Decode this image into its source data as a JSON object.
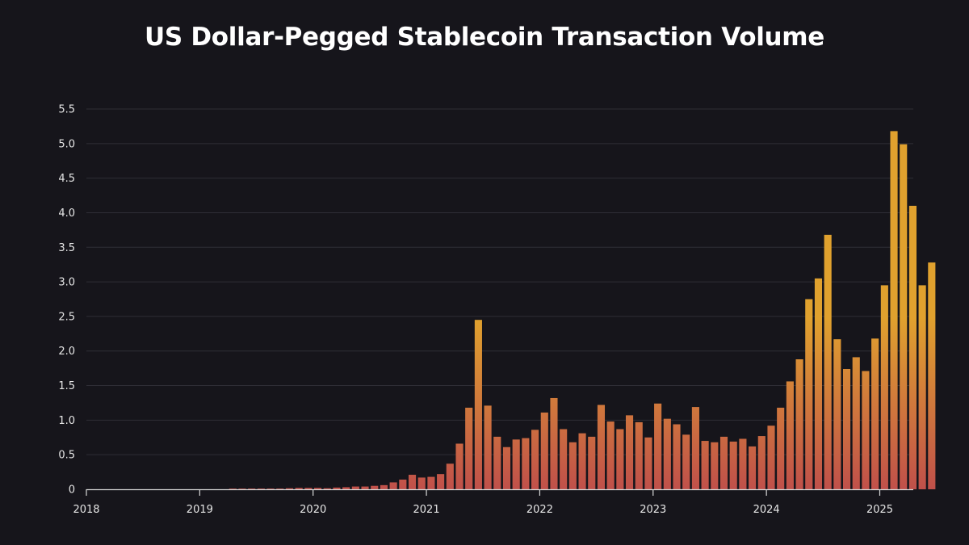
{
  "chart_data": {
    "type": "bar",
    "title": "US Dollar-Pegged Stablecoin Transaction Volume",
    "xlabel": "",
    "ylabel": "",
    "ylim": [
      0,
      5.5
    ],
    "yticks": [
      0,
      0.5,
      1.0,
      1.5,
      2.0,
      2.5,
      3.0,
      3.5,
      4.0,
      4.5,
      5.0,
      5.5
    ],
    "ytick_labels": [
      "0",
      "0.5",
      "1.0",
      "1.5",
      "2.0",
      "2.5",
      "3.0",
      "3.5",
      "4.0",
      "4.5",
      "5.0",
      "5.5"
    ],
    "xticks": [
      "2018",
      "2019",
      "2020",
      "2021",
      "2022",
      "2023",
      "2024",
      "2025"
    ],
    "grid": true,
    "colors": {
      "bar_top": "#e0a12e",
      "bar_bottom": "#c0504a",
      "grid": "#2f2e36",
      "background": "#16151b"
    },
    "start": "2018-01",
    "frequency": "monthly",
    "values": [
      0,
      0,
      0,
      0,
      0,
      0,
      0,
      0,
      0,
      0,
      0,
      0,
      0,
      0,
      0,
      0.005,
      0.005,
      0.01,
      0.01,
      0.01,
      0.01,
      0.015,
      0.02,
      0.02,
      0.02,
      0.015,
      0.025,
      0.03,
      0.04,
      0.04,
      0.05,
      0.06,
      0.1,
      0.14,
      0.21,
      0.17,
      0.18,
      0.22,
      0.37,
      0.66,
      1.18,
      2.45,
      1.21,
      0.76,
      0.61,
      0.72,
      0.74,
      0.86,
      1.11,
      1.32,
      0.87,
      0.68,
      0.81,
      0.76,
      1.22,
      0.98,
      0.87,
      1.07,
      0.97,
      0.75,
      1.24,
      1.02,
      0.94,
      0.79,
      1.19,
      0.7,
      0.68,
      0.76,
      0.69,
      0.73,
      0.62,
      0.77,
      0.92,
      1.18,
      1.56,
      1.88,
      2.75,
      3.05,
      3.68,
      2.17,
      1.74,
      1.91,
      1.71,
      2.18,
      2.95,
      5.18,
      4.99,
      4.1,
      2.95,
      3.28
    ]
  }
}
